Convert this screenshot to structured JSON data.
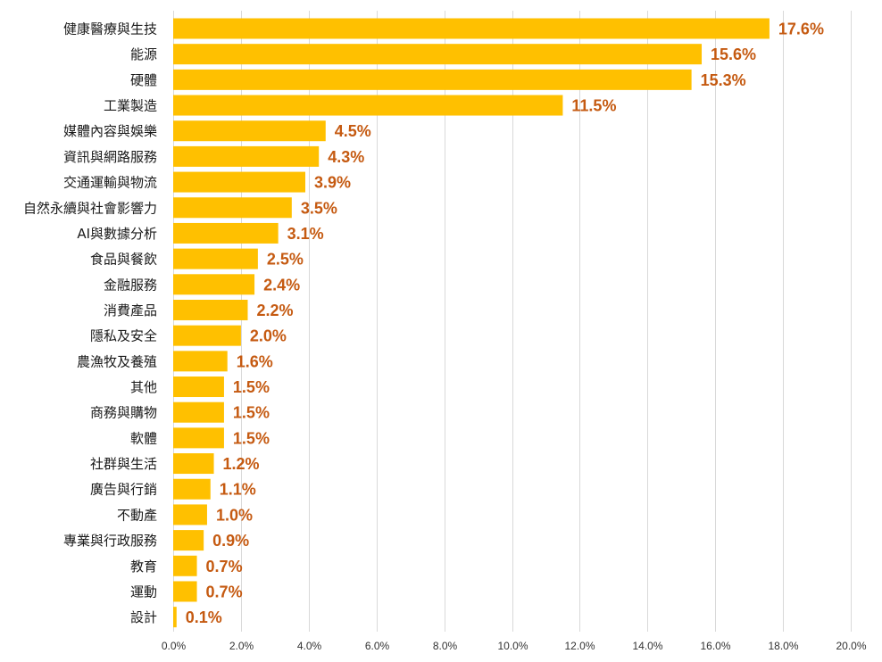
{
  "chart_data": {
    "type": "bar",
    "orientation": "horizontal",
    "title": "",
    "xlabel": "",
    "ylabel": "",
    "xlim": [
      0,
      20
    ],
    "grid": true,
    "categories": [
      "健康醫療與生技",
      "能源",
      "硬體",
      "工業製造",
      "媒體內容與娛樂",
      "資訊與網路服務",
      "交通運輸與物流",
      "自然永續與社會影響力",
      "AI與數據分析",
      "食品與餐飲",
      "金融服務",
      "消費產品",
      "隱私及安全",
      "農漁牧及養殖",
      "其他",
      "商務與購物",
      "軟體",
      "社群與生活",
      "廣告與行銷",
      "不動產",
      "專業與行政服務",
      "教育",
      "運動",
      "設計"
    ],
    "values": [
      17.6,
      15.6,
      15.3,
      11.5,
      4.5,
      4.3,
      3.9,
      3.5,
      3.1,
      2.5,
      2.4,
      2.2,
      2.0,
      1.6,
      1.5,
      1.5,
      1.5,
      1.2,
      1.1,
      1.0,
      0.9,
      0.7,
      0.7,
      0.1
    ],
    "value_labels": [
      "17.6%",
      "15.6%",
      "15.3%",
      "11.5%",
      "4.5%",
      "4.3%",
      "3.9%",
      "3.5%",
      "3.1%",
      "2.5%",
      "2.4%",
      "2.2%",
      "2.0%",
      "1.6%",
      "1.5%",
      "1.5%",
      "1.5%",
      "1.2%",
      "1.1%",
      "1.0%",
      "0.9%",
      "0.7%",
      "0.7%",
      "0.1%"
    ],
    "tick_values": [
      0,
      2,
      4,
      6,
      8,
      10,
      12,
      14,
      16,
      18,
      20
    ],
    "tick_labels": [
      "0.0%",
      "2.0%",
      "4.0%",
      "6.0%",
      "8.0%",
      "10.0%",
      "12.0%",
      "14.0%",
      "16.0%",
      "18.0%",
      "20.0%"
    ],
    "colors": {
      "bar": "#FFC000",
      "value_label": "#C55A11",
      "grid": "#D9D9D9",
      "text": "#1A1A1A"
    }
  }
}
